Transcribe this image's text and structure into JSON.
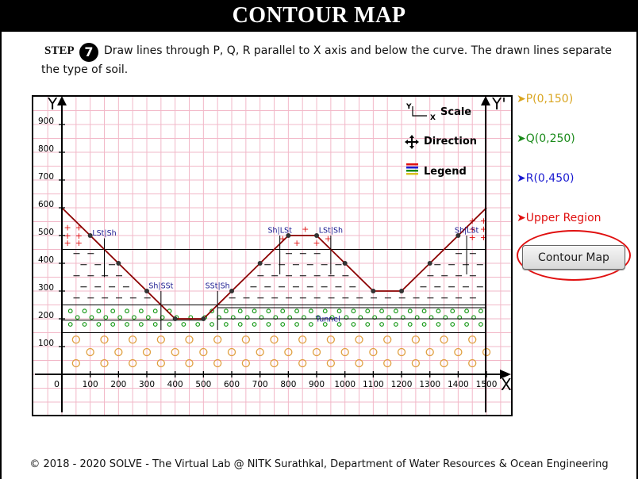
{
  "header": {
    "title": "CONTOUR MAP"
  },
  "step": {
    "label": "STEP",
    "number": "7",
    "text": "Draw lines through P, Q, R parallel to X axis and below the curve. The drawn lines separate the type of soil."
  },
  "axes": {
    "y_label": "Y",
    "y_prime_label": "Y'",
    "x_label": "X",
    "x_origin": "0",
    "x_ticks": [
      "100",
      "200",
      "300",
      "400",
      "500",
      "600",
      "700",
      "800",
      "900",
      "1000",
      "1100",
      "1200",
      "1300",
      "1400",
      "1500"
    ],
    "y_ticks": [
      "100",
      "200",
      "300",
      "400",
      "500",
      "600",
      "700",
      "800",
      "900"
    ],
    "x_range": [
      0,
      1500
    ],
    "y_range": [
      0,
      1000
    ]
  },
  "legend_box": {
    "scale": "Scale",
    "scale_y": "Y",
    "scale_x": "X",
    "direction": "Direction",
    "legend": "Legend"
  },
  "points": [
    {
      "label": "P(0,150)",
      "color": "#d9a520"
    },
    {
      "label": "Q(0,250)",
      "color": "#1a8a1a"
    },
    {
      "label": "R(0,450)",
      "color": "#1a1ad0"
    },
    {
      "label": "Upper Region",
      "color": "#e01010"
    }
  ],
  "profile": {
    "color": "#8b0000",
    "x": [
      0,
      100,
      200,
      300,
      400,
      500,
      600,
      700,
      800,
      900,
      1000,
      1100,
      1200,
      1300,
      1400,
      1500
    ],
    "y": [
      600,
      500,
      400,
      300,
      200,
      200,
      300,
      400,
      500,
      500,
      400,
      300,
      300,
      400,
      500,
      600
    ]
  },
  "soil_labels": [
    "LSt|Sh",
    "Sh|SSt",
    "SSt|Sh",
    "Sh|LSt",
    "LSt|Sh",
    "Sh|LSt",
    "Tunnel"
  ],
  "button": {
    "label": "Contour Map"
  },
  "footer": {
    "text": "© 2018 - 2020 SOLVE - The Virtual Lab @ NITK Surathkal, Department of Water Resources & Ocean Engineering"
  }
}
